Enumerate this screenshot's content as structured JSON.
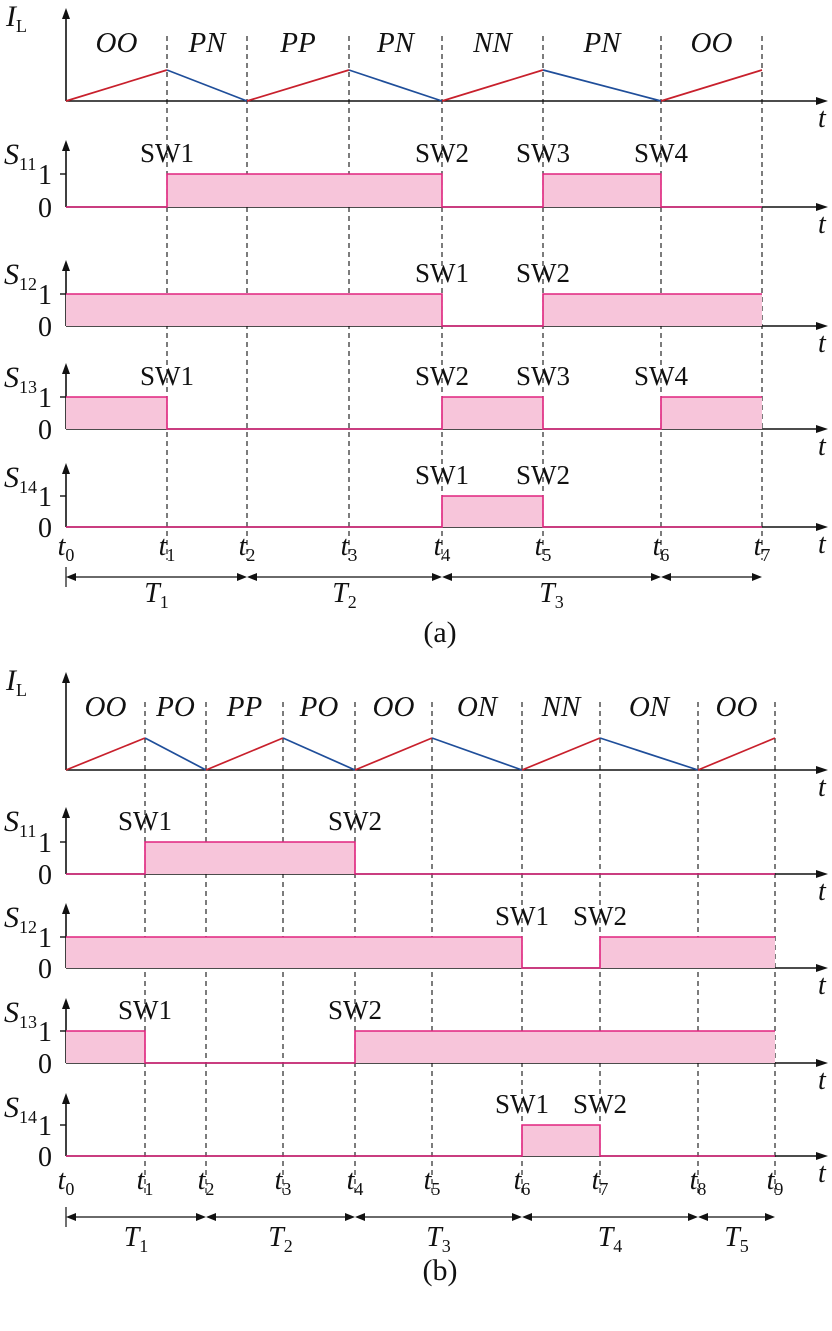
{
  "colors": {
    "fill": "#f7c5da",
    "edge": "#e0257f",
    "rise": "#c8202c",
    "fall": "#1f4e9a",
    "ink": "#111111"
  },
  "axis_symbol": "t",
  "level_labels": [
    "1",
    "0"
  ],
  "panels": [
    {
      "caption": "(a)",
      "time_marks": [
        {
          "base": "t",
          "sub": "0"
        },
        {
          "base": "t",
          "sub": "1"
        },
        {
          "base": "t",
          "sub": "2"
        },
        {
          "base": "t",
          "sub": "3"
        },
        {
          "base": "t",
          "sub": "4"
        },
        {
          "base": "t",
          "sub": "5"
        },
        {
          "base": "t",
          "sub": "6"
        },
        {
          "base": "t",
          "sub": "7"
        }
      ],
      "il": {
        "label": {
          "base": "I",
          "sub": "L"
        },
        "levels": [
          0,
          1,
          0,
          1,
          0,
          1,
          0,
          1
        ],
        "states": [
          "OO",
          "PN",
          "PP",
          "PN",
          "NN",
          "PN",
          "OO"
        ]
      },
      "switches": [
        {
          "label": {
            "base": "S",
            "sub": "11"
          },
          "states": [
            0,
            1,
            1,
            1,
            0,
            1,
            0
          ],
          "sw_labels": [
            {
              "text": "SW1",
              "at": 1
            },
            {
              "text": "SW2",
              "at": 4
            },
            {
              "text": "SW3",
              "at": 5
            },
            {
              "text": "SW4",
              "at": 6
            }
          ]
        },
        {
          "label": {
            "base": "S",
            "sub": "12"
          },
          "states": [
            1,
            1,
            1,
            1,
            0,
            1,
            1
          ],
          "sw_labels": [
            {
              "text": "SW1",
              "at": 4
            },
            {
              "text": "SW2",
              "at": 5
            }
          ]
        },
        {
          "label": {
            "base": "S",
            "sub": "13"
          },
          "states": [
            1,
            0,
            0,
            0,
            1,
            0,
            1
          ],
          "sw_labels": [
            {
              "text": "SW1",
              "at": 1
            },
            {
              "text": "SW2",
              "at": 4
            },
            {
              "text": "SW3",
              "at": 5
            },
            {
              "text": "SW4",
              "at": 6
            }
          ]
        },
        {
          "label": {
            "base": "S",
            "sub": "14"
          },
          "states": [
            0,
            0,
            0,
            0,
            1,
            0,
            0
          ],
          "sw_labels": [
            {
              "text": "SW1",
              "at": 4
            },
            {
              "text": "SW2",
              "at": 5
            }
          ]
        }
      ],
      "periods": [
        {
          "label": {
            "base": "T",
            "sub": "1"
          },
          "from": 0,
          "to": 2
        },
        {
          "label": {
            "base": "T",
            "sub": "2"
          },
          "from": 2,
          "to": 4
        },
        {
          "label": {
            "base": "T",
            "sub": "3"
          },
          "from": 4,
          "to": 6
        },
        {
          "label": null,
          "from": 6,
          "to": 7
        }
      ]
    },
    {
      "caption": "(b)",
      "time_marks": [
        {
          "base": "t",
          "sub": "0"
        },
        {
          "base": "t",
          "sub": "1"
        },
        {
          "base": "t",
          "sub": "2"
        },
        {
          "base": "t",
          "sub": "3"
        },
        {
          "base": "t",
          "sub": "4"
        },
        {
          "base": "t",
          "sub": "5"
        },
        {
          "base": "t",
          "sub": "6"
        },
        {
          "base": "t",
          "sub": "7"
        },
        {
          "base": "t",
          "sub": "8"
        },
        {
          "base": "t",
          "sub": "9"
        }
      ],
      "il": {
        "label": {
          "base": "I",
          "sub": "L"
        },
        "levels": [
          0,
          1,
          0,
          1,
          0,
          1,
          0,
          1,
          0,
          1
        ],
        "states": [
          "OO",
          "PO",
          "PP",
          "PO",
          "OO",
          "ON",
          "NN",
          "ON",
          "OO"
        ]
      },
      "switches": [
        {
          "label": {
            "base": "S",
            "sub": "11"
          },
          "states": [
            0,
            1,
            1,
            1,
            0,
            0,
            0,
            0,
            0
          ],
          "sw_labels": [
            {
              "text": "SW1",
              "at": 1
            },
            {
              "text": "SW2",
              "at": 4
            }
          ]
        },
        {
          "label": {
            "base": "S",
            "sub": "12"
          },
          "states": [
            1,
            1,
            1,
            1,
            1,
            1,
            0,
            1,
            1
          ],
          "sw_labels": [
            {
              "text": "SW1",
              "at": 6
            },
            {
              "text": "SW2",
              "at": 7
            }
          ]
        },
        {
          "label": {
            "base": "S",
            "sub": "13"
          },
          "states": [
            1,
            0,
            0,
            0,
            1,
            1,
            1,
            1,
            1
          ],
          "sw_labels": [
            {
              "text": "SW1",
              "at": 1
            },
            {
              "text": "SW2",
              "at": 4
            }
          ]
        },
        {
          "label": {
            "base": "S",
            "sub": "14"
          },
          "states": [
            0,
            0,
            0,
            0,
            0,
            0,
            1,
            0,
            0
          ],
          "sw_labels": [
            {
              "text": "SW1",
              "at": 6
            },
            {
              "text": "SW2",
              "at": 7
            }
          ]
        }
      ],
      "periods": [
        {
          "label": {
            "base": "T",
            "sub": "1"
          },
          "from": 0,
          "to": 2
        },
        {
          "label": {
            "base": "T",
            "sub": "2"
          },
          "from": 2,
          "to": 4
        },
        {
          "label": {
            "base": "T",
            "sub": "3"
          },
          "from": 4,
          "to": 6
        },
        {
          "label": {
            "base": "T",
            "sub": "4"
          },
          "from": 6,
          "to": 8
        },
        {
          "label": {
            "base": "T",
            "sub": "5"
          },
          "from": 8,
          "to": 9
        }
      ]
    }
  ]
}
